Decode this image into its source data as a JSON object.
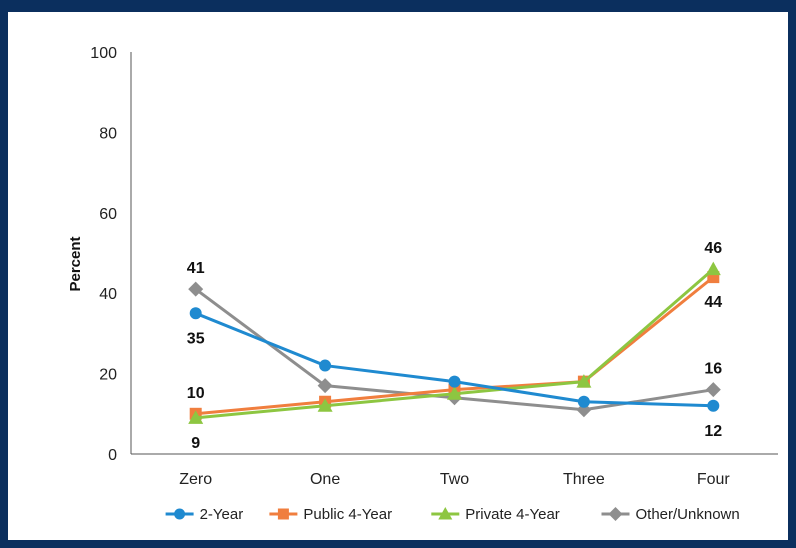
{
  "chart_data": {
    "type": "line",
    "title": "",
    "xlabel": "",
    "ylabel": "Percent",
    "ylim": [
      0,
      100
    ],
    "yticks": [
      "0",
      "20",
      "40",
      "60",
      "80",
      "100"
    ],
    "categories": [
      "Zero",
      "One",
      "Two",
      "Three",
      "Four"
    ],
    "grid": false,
    "legend_position": "bottom",
    "series": [
      {
        "name": "2-Year",
        "color": "#1f8ad0",
        "marker": "circle",
        "values": [
          35,
          22,
          18,
          13,
          12
        ]
      },
      {
        "name": "Public 4-Year",
        "color": "#f07e3e",
        "marker": "square",
        "values": [
          10,
          13,
          16,
          18,
          44
        ]
      },
      {
        "name": "Private 4-Year",
        "color": "#8dc641",
        "marker": "triangle",
        "values": [
          9,
          12,
          15,
          18,
          46
        ]
      },
      {
        "name": "Other/Unknown",
        "color": "#8e8e8e",
        "marker": "diamond",
        "values": [
          41,
          17,
          14,
          11,
          16
        ]
      }
    ],
    "data_labels": [
      {
        "series": 3,
        "index": 0,
        "text": "41",
        "pos": "above"
      },
      {
        "series": 0,
        "index": 0,
        "text": "35",
        "pos": "below"
      },
      {
        "series": 1,
        "index": 0,
        "text": "10",
        "pos": "above"
      },
      {
        "series": 2,
        "index": 0,
        "text": "9",
        "pos": "below"
      },
      {
        "series": 2,
        "index": 4,
        "text": "46",
        "pos": "above"
      },
      {
        "series": 1,
        "index": 4,
        "text": "44",
        "pos": "below"
      },
      {
        "series": 3,
        "index": 4,
        "text": "16",
        "pos": "above"
      },
      {
        "series": 0,
        "index": 4,
        "text": "12",
        "pos": "below"
      }
    ]
  }
}
